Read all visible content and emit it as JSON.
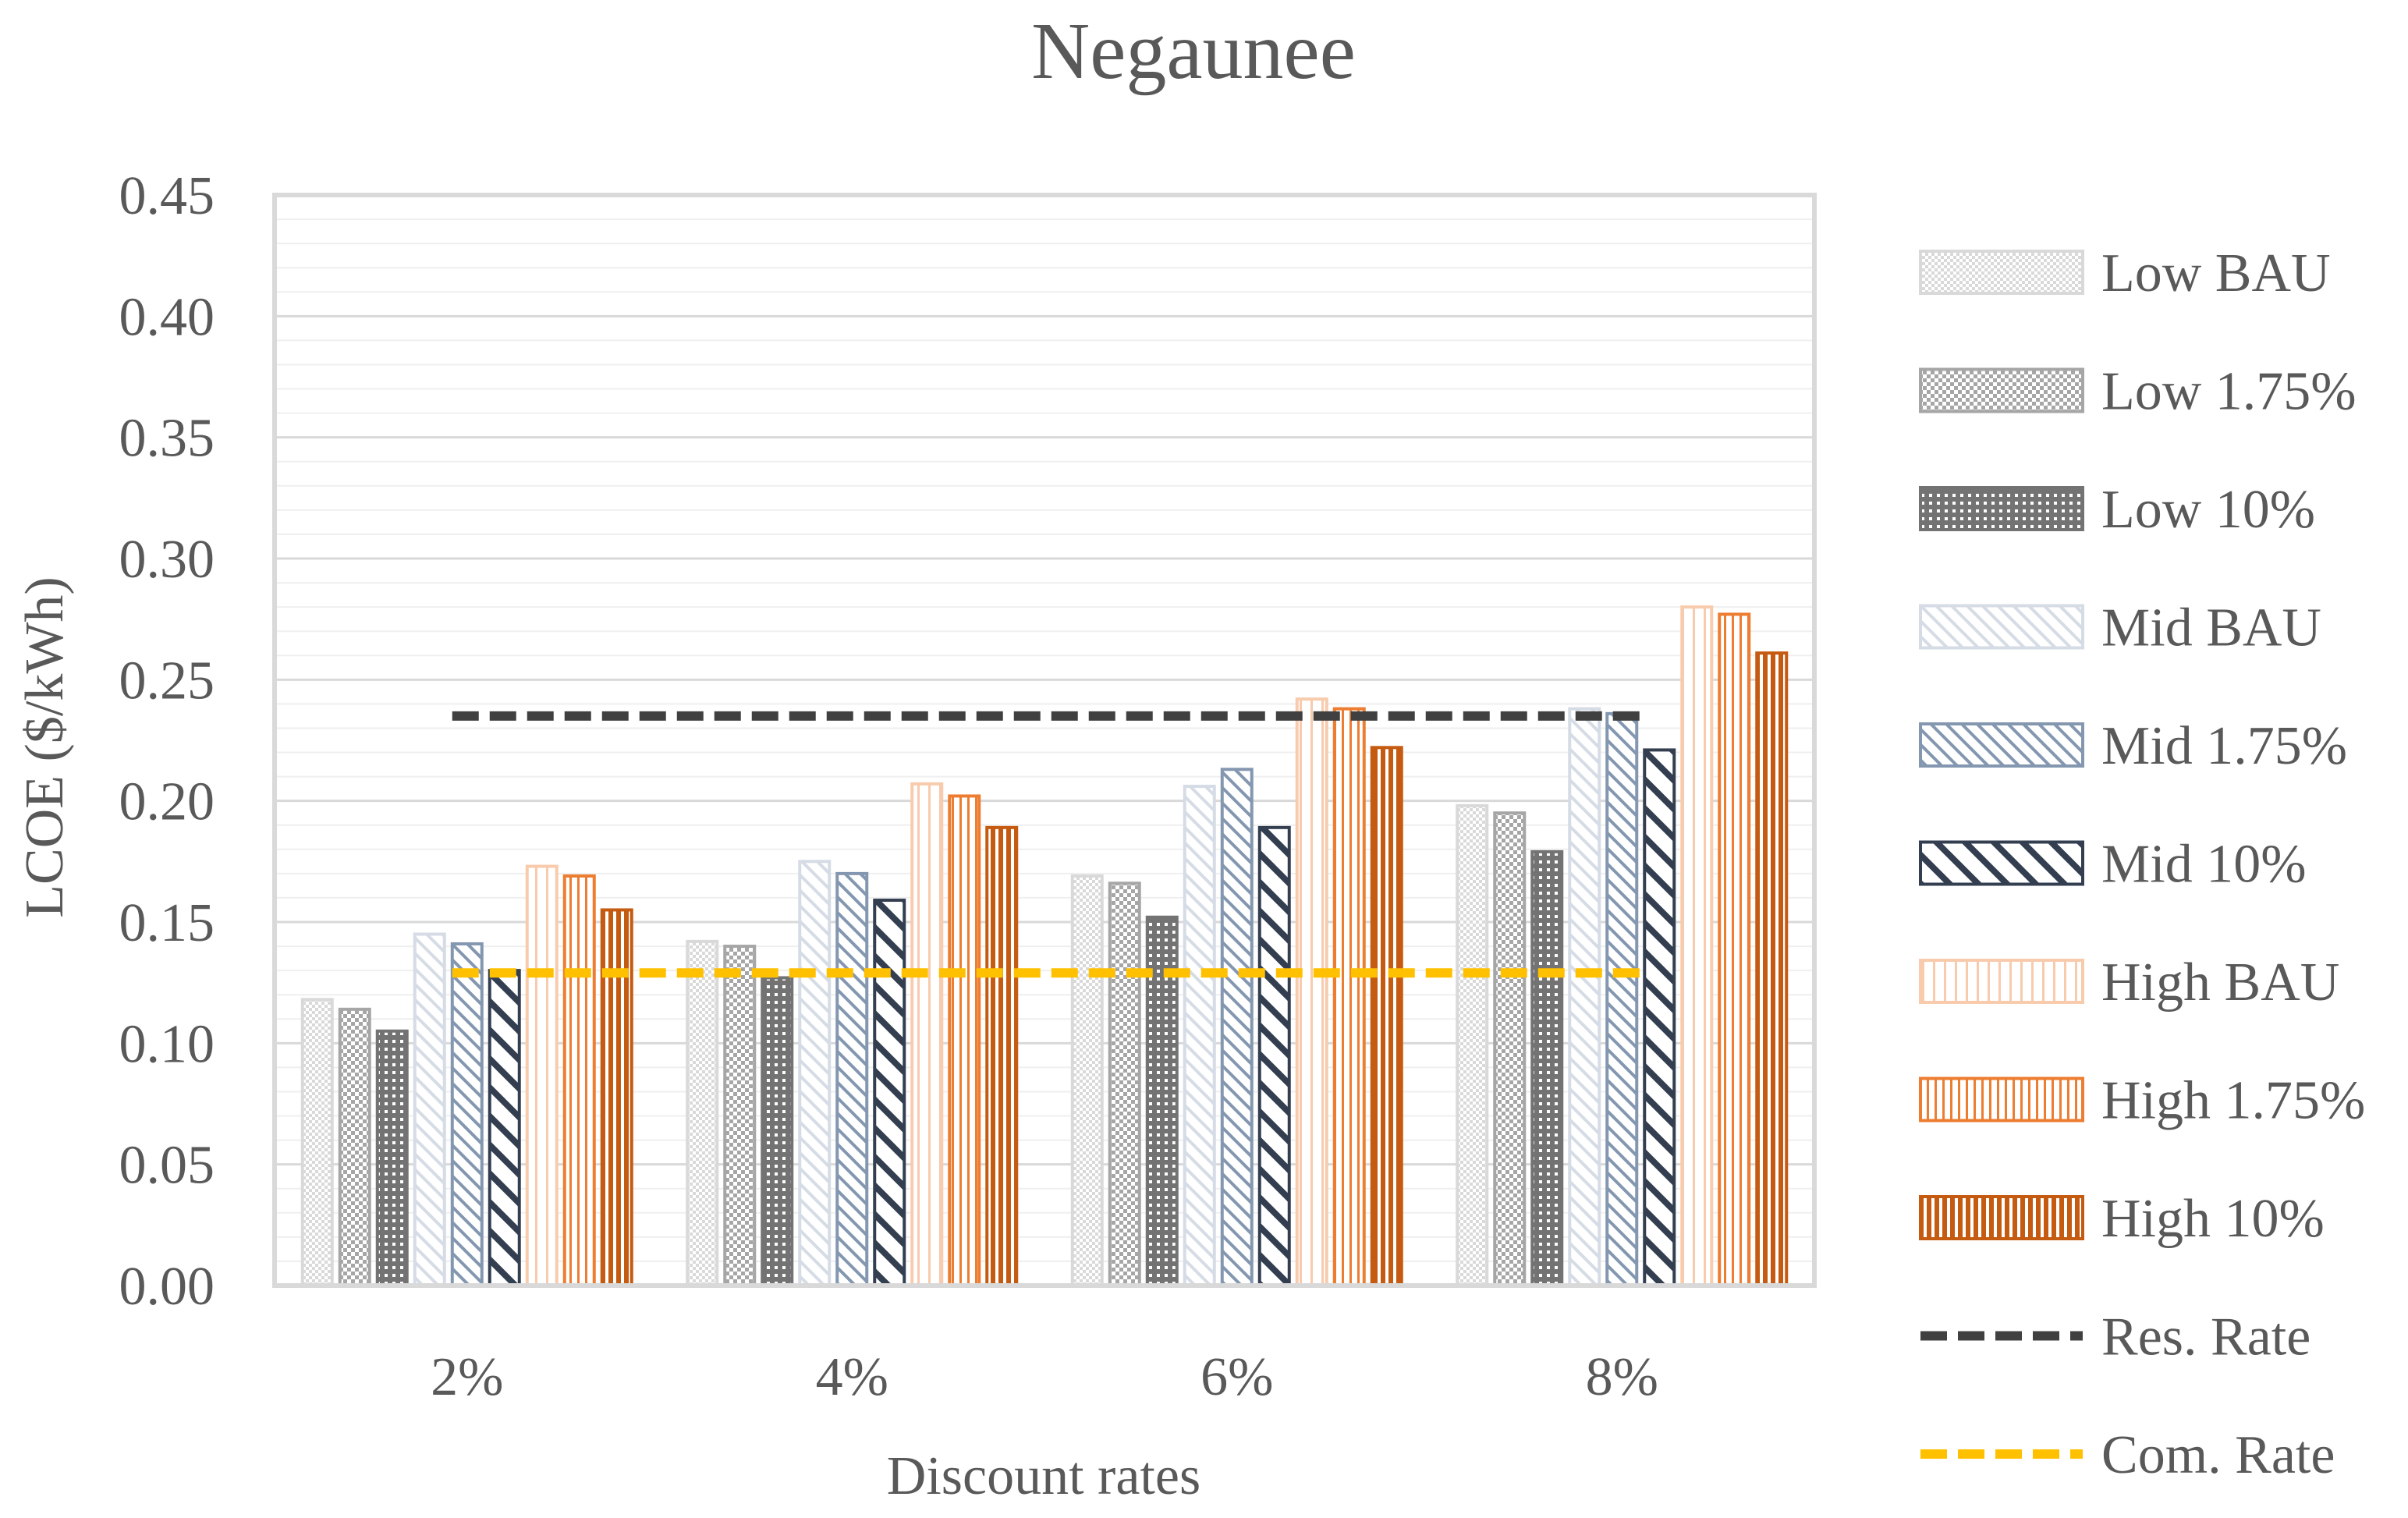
{
  "chart_data": {
    "type": "bar",
    "title": "Negaunee",
    "xlabel": "Discount rates",
    "ylabel": "LCOE ($/kWh)",
    "ylim": [
      0,
      0.45
    ],
    "yticks": [
      "0.00",
      "0.05",
      "0.10",
      "0.15",
      "0.20",
      "0.25",
      "0.30",
      "0.35",
      "0.40",
      "0.45"
    ],
    "grid": true,
    "legend_position": "right",
    "categories": [
      "2%",
      "4%",
      "6%",
      "8%"
    ],
    "series": [
      {
        "name": "Low BAU",
        "values": [
          0.118,
          0.142,
          0.169,
          0.198
        ],
        "color": "#d9d9d9",
        "pattern": "checker-fine"
      },
      {
        "name": "Low 1.75%",
        "values": [
          0.114,
          0.14,
          0.166,
          0.195
        ],
        "color": "#a6a6a6",
        "pattern": "checker"
      },
      {
        "name": "Low 10%",
        "values": [
          0.105,
          0.127,
          0.152,
          0.179
        ],
        "color": "#737373",
        "pattern": "dots"
      },
      {
        "name": "Mid BAU",
        "values": [
          0.145,
          0.175,
          0.206,
          0.238
        ],
        "color": "#d6dce5",
        "pattern": "diag-light"
      },
      {
        "name": "Mid 1.75%",
        "values": [
          0.141,
          0.17,
          0.213,
          0.236
        ],
        "color": "#8497b0",
        "pattern": "diag"
      },
      {
        "name": "Mid 10%",
        "values": [
          0.13,
          0.159,
          0.189,
          0.221
        ],
        "color": "#333f50",
        "pattern": "diag-wide"
      },
      {
        "name": "High BAU",
        "values": [
          0.173,
          0.207,
          0.242,
          0.28
        ],
        "color": "#f8cbad",
        "pattern": "vert-wide"
      },
      {
        "name": "High 1.75%",
        "values": [
          0.169,
          0.202,
          0.238,
          0.277
        ],
        "color": "#ed7d31",
        "pattern": "vert"
      },
      {
        "name": "High 10%",
        "values": [
          0.155,
          0.189,
          0.222,
          0.261
        ],
        "color": "#c55a11",
        "pattern": "vert-dense"
      }
    ],
    "reference_lines": [
      {
        "name": "Res. Rate",
        "value": 0.235,
        "color": "#404040"
      },
      {
        "name": "Com. Rate",
        "value": 0.129,
        "color": "#ffc000"
      }
    ]
  }
}
